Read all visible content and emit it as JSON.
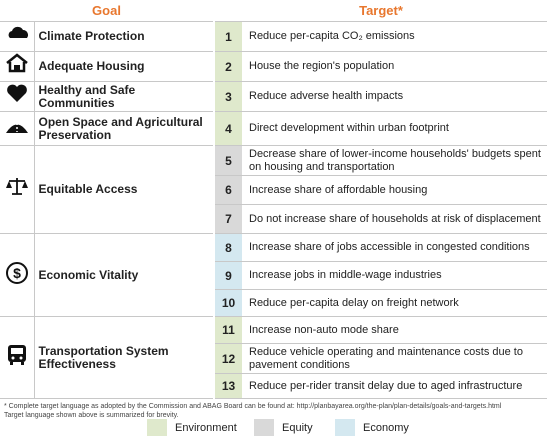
{
  "header": {
    "goal_heading": "Goal",
    "target_heading": "Target*"
  },
  "goals": [
    {
      "label": "Climate Protection",
      "targets": [
        {
          "number": 1,
          "text": "Reduce per-capita CO₂ emissions",
          "color": "#dfe9cc"
        }
      ]
    },
    {
      "label": "Adequate Housing",
      "targets": [
        {
          "number": 2,
          "text": "House the region's population",
          "color": "#dfe9cc"
        }
      ]
    },
    {
      "label": "Healthy and Safe Communities",
      "targets": [
        {
          "number": 3,
          "text": "Reduce adverse health impacts",
          "color": "#dfe9cc"
        }
      ]
    },
    {
      "label": "Open Space and Agricultural Preservation",
      "targets": [
        {
          "number": 4,
          "text": "Direct development within urban footprint",
          "color": "#dfe9cc"
        }
      ]
    },
    {
      "label": "Equitable Access",
      "targets": [
        {
          "number": 5,
          "text": "Decrease share of lower-income households' budgets spent on housing and transportation",
          "color": "#d9d9d9"
        },
        {
          "number": 6,
          "text": "Increase share of affordable housing",
          "color": "#d9d9d9"
        },
        {
          "number": 7,
          "text": "Do not increase share of households at risk of displacement",
          "color": "#d9d9d9"
        }
      ]
    },
    {
      "label": "Economic Vitality",
      "targets": [
        {
          "number": 8,
          "text": "Increase share of jobs accessible in congested conditions",
          "color": "#d4e8f0"
        },
        {
          "number": 9,
          "text": "Increase jobs in middle-wage industries",
          "color": "#d4e8f0"
        },
        {
          "number": 10,
          "text": "Reduce per-capita delay on freight network",
          "color": "#d4e8f0"
        }
      ]
    },
    {
      "label": "Transportation System Effectiveness",
      "targets": [
        {
          "number": 11,
          "text": "Increase non-auto mode share",
          "color": "#dfe9cc"
        },
        {
          "number": 12,
          "text": "Reduce vehicle operating and maintenance costs due to pavement conditions",
          "color": "#dfe9cc"
        },
        {
          "number": 13,
          "text": "Reduce per-rider transit delay due to aged infrastructure",
          "color": "#dfe9cc"
        }
      ]
    }
  ],
  "footnote": [
    "* Complete target language as adopted by the Commission and ABAG Board can be found at: http://planbayarea.org/the-plan/plan-details/goals-and-targets.html",
    "Target language shown above is summarized for brevity."
  ],
  "legend": [
    {
      "label": "Environment",
      "color": "#dfe9cc"
    },
    {
      "label": "Equity",
      "color": "#d9d9d9"
    },
    {
      "label": "Economy",
      "color": "#d4e8f0"
    }
  ]
}
